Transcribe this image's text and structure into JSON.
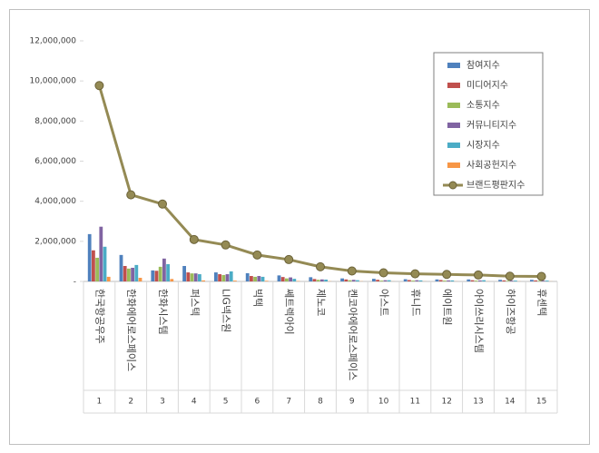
{
  "chart_data": {
    "type": "bar",
    "categories": [
      "한국항공우주",
      "한화에어로스페이스",
      "한화시스템",
      "퍼스텍",
      "LIG넥스원",
      "빅텍",
      "쎄트렉아이",
      "제노코",
      "켄코아에어로스페이스",
      "아스트",
      "휴니드",
      "에이트원",
      "아이쓰리시스템",
      "하이즈항공",
      "휴센텍"
    ],
    "ranks": [
      1,
      2,
      3,
      4,
      5,
      6,
      7,
      8,
      9,
      10,
      11,
      12,
      13,
      14,
      15
    ],
    "series": [
      {
        "name": "참여지수",
        "color": "#4f81bd",
        "values": [
          2360000,
          1320000,
          550000,
          770000,
          450000,
          410000,
          300000,
          210000,
          150000,
          130000,
          110000,
          100000,
          100000,
          80000,
          80000
        ]
      },
      {
        "name": "미디어지수",
        "color": "#c0504d",
        "values": [
          1550000,
          770000,
          530000,
          450000,
          360000,
          270000,
          220000,
          120000,
          100000,
          80000,
          70000,
          70000,
          60000,
          50000,
          50000
        ]
      },
      {
        "name": "소통지수",
        "color": "#9bbb59",
        "values": [
          1180000,
          640000,
          730000,
          400000,
          320000,
          230000,
          150000,
          80000,
          60000,
          40000,
          40000,
          40000,
          40000,
          30000,
          30000
        ]
      },
      {
        "name": "커뮤니티지수",
        "color": "#8064a2",
        "values": [
          2730000,
          680000,
          1140000,
          400000,
          360000,
          270000,
          200000,
          100000,
          80000,
          60000,
          60000,
          50000,
          50000,
          40000,
          40000
        ]
      },
      {
        "name": "시장지수",
        "color": "#4bacc6",
        "values": [
          1730000,
          820000,
          860000,
          360000,
          500000,
          230000,
          130000,
          90000,
          60000,
          60000,
          50000,
          50000,
          60000,
          40000,
          40000
        ]
      },
      {
        "name": "사회공헌지수",
        "color": "#f79646",
        "values": [
          230000,
          180000,
          120000,
          50000,
          40000,
          30000,
          20000,
          10000,
          10000,
          5000,
          5000,
          5000,
          5000,
          5000,
          5000
        ]
      },
      {
        "name": "브랜드평판지수",
        "type": "line",
        "color": "#948a54",
        "values": [
          9770000,
          4320000,
          3860000,
          2090000,
          1820000,
          1320000,
          1090000,
          730000,
          520000,
          430000,
          380000,
          350000,
          320000,
          260000,
          250000
        ]
      }
    ],
    "ylim": [
      0,
      12000000
    ],
    "yticks": [
      {
        "value": 0,
        "label": "-"
      },
      {
        "value": 2000000,
        "label": "2,000,000"
      },
      {
        "value": 4000000,
        "label": "4,000,000"
      },
      {
        "value": 6000000,
        "label": "6,000,000"
      },
      {
        "value": 8000000,
        "label": "8,000,000"
      },
      {
        "value": 10000000,
        "label": "10,000,000"
      },
      {
        "value": 12000000,
        "label": "12,000,000"
      }
    ],
    "grid": false,
    "legend": "top-right"
  }
}
